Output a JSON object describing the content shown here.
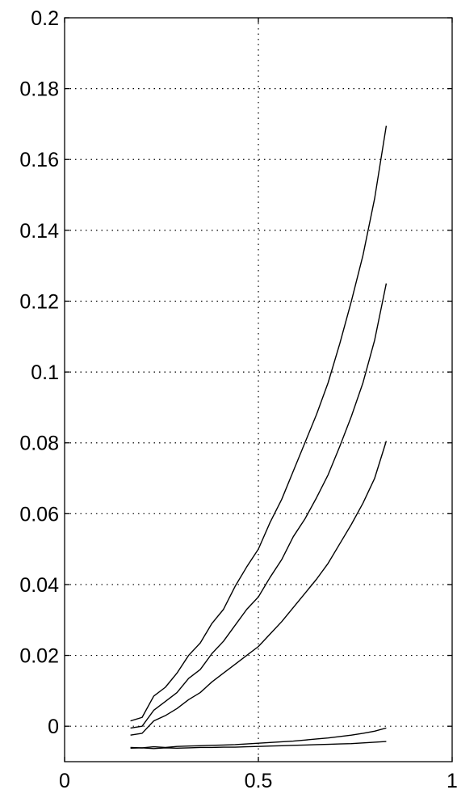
{
  "chart_data": {
    "type": "line",
    "xlim": [
      0,
      1
    ],
    "ylim": [
      -0.01,
      0.2
    ],
    "grid": true,
    "x_ticks": [
      0,
      0.5,
      1
    ],
    "x_tick_labels": [
      "0",
      "0.5",
      "1"
    ],
    "y_ticks": [
      0,
      0.02,
      0.04,
      0.06,
      0.08,
      0.1,
      0.12,
      0.14,
      0.16,
      0.18,
      0.2
    ],
    "y_tick_labels": [
      "0",
      "0.02",
      "0.04",
      "0.06",
      "0.08",
      "0.1",
      "0.12",
      "0.14",
      "0.16",
      "0.18",
      "0.2"
    ],
    "x": [
      0.17,
      0.2,
      0.23,
      0.26,
      0.29,
      0.32,
      0.35,
      0.38,
      0.41,
      0.44,
      0.47,
      0.5,
      0.53,
      0.56,
      0.59,
      0.62,
      0.65,
      0.68,
      0.71,
      0.74,
      0.77,
      0.8,
      0.83
    ],
    "series": [
      {
        "values": [
          0.0015,
          0.0025,
          0.0085,
          0.011,
          0.015,
          0.02,
          0.0235,
          0.029,
          0.033,
          0.0395,
          0.045,
          0.05,
          0.0575,
          0.064,
          0.072,
          0.08,
          0.088,
          0.097,
          0.108,
          0.12,
          0.133,
          0.149,
          0.1695
        ]
      },
      {
        "values": [
          -0.0005,
          0.0,
          0.0045,
          0.007,
          0.0095,
          0.0135,
          0.016,
          0.0205,
          0.024,
          0.0285,
          0.033,
          0.0365,
          0.042,
          0.047,
          0.0535,
          0.0585,
          0.0645,
          0.071,
          0.079,
          0.0875,
          0.097,
          0.109,
          0.125
        ]
      },
      {
        "values": [
          -0.0025,
          -0.002,
          0.0015,
          0.003,
          0.005,
          0.0075,
          0.0095,
          0.0125,
          0.015,
          0.0175,
          0.02,
          0.0225,
          0.026,
          0.0295,
          0.0335,
          0.0375,
          0.0415,
          0.046,
          0.0515,
          0.057,
          0.063,
          0.07,
          0.0805
        ]
      },
      {
        "values": [
          -0.006,
          -0.0061,
          -0.0058,
          -0.006,
          -0.0057,
          -0.0056,
          -0.0055,
          -0.0054,
          -0.0053,
          -0.0052,
          -0.005,
          -0.0048,
          -0.0046,
          -0.0044,
          -0.0042,
          -0.0039,
          -0.0036,
          -0.0033,
          -0.0029,
          -0.0025,
          -0.002,
          -0.0014,
          -0.0005
        ]
      },
      {
        "values": [
          -0.0062,
          -0.0061,
          -0.0063,
          -0.0061,
          -0.0062,
          -0.0061,
          -0.006,
          -0.006,
          -0.0059,
          -0.0059,
          -0.0058,
          -0.0057,
          -0.0056,
          -0.0055,
          -0.0054,
          -0.0053,
          -0.0052,
          -0.0051,
          -0.005,
          -0.0049,
          -0.0047,
          -0.0045,
          -0.0043
        ]
      }
    ]
  }
}
